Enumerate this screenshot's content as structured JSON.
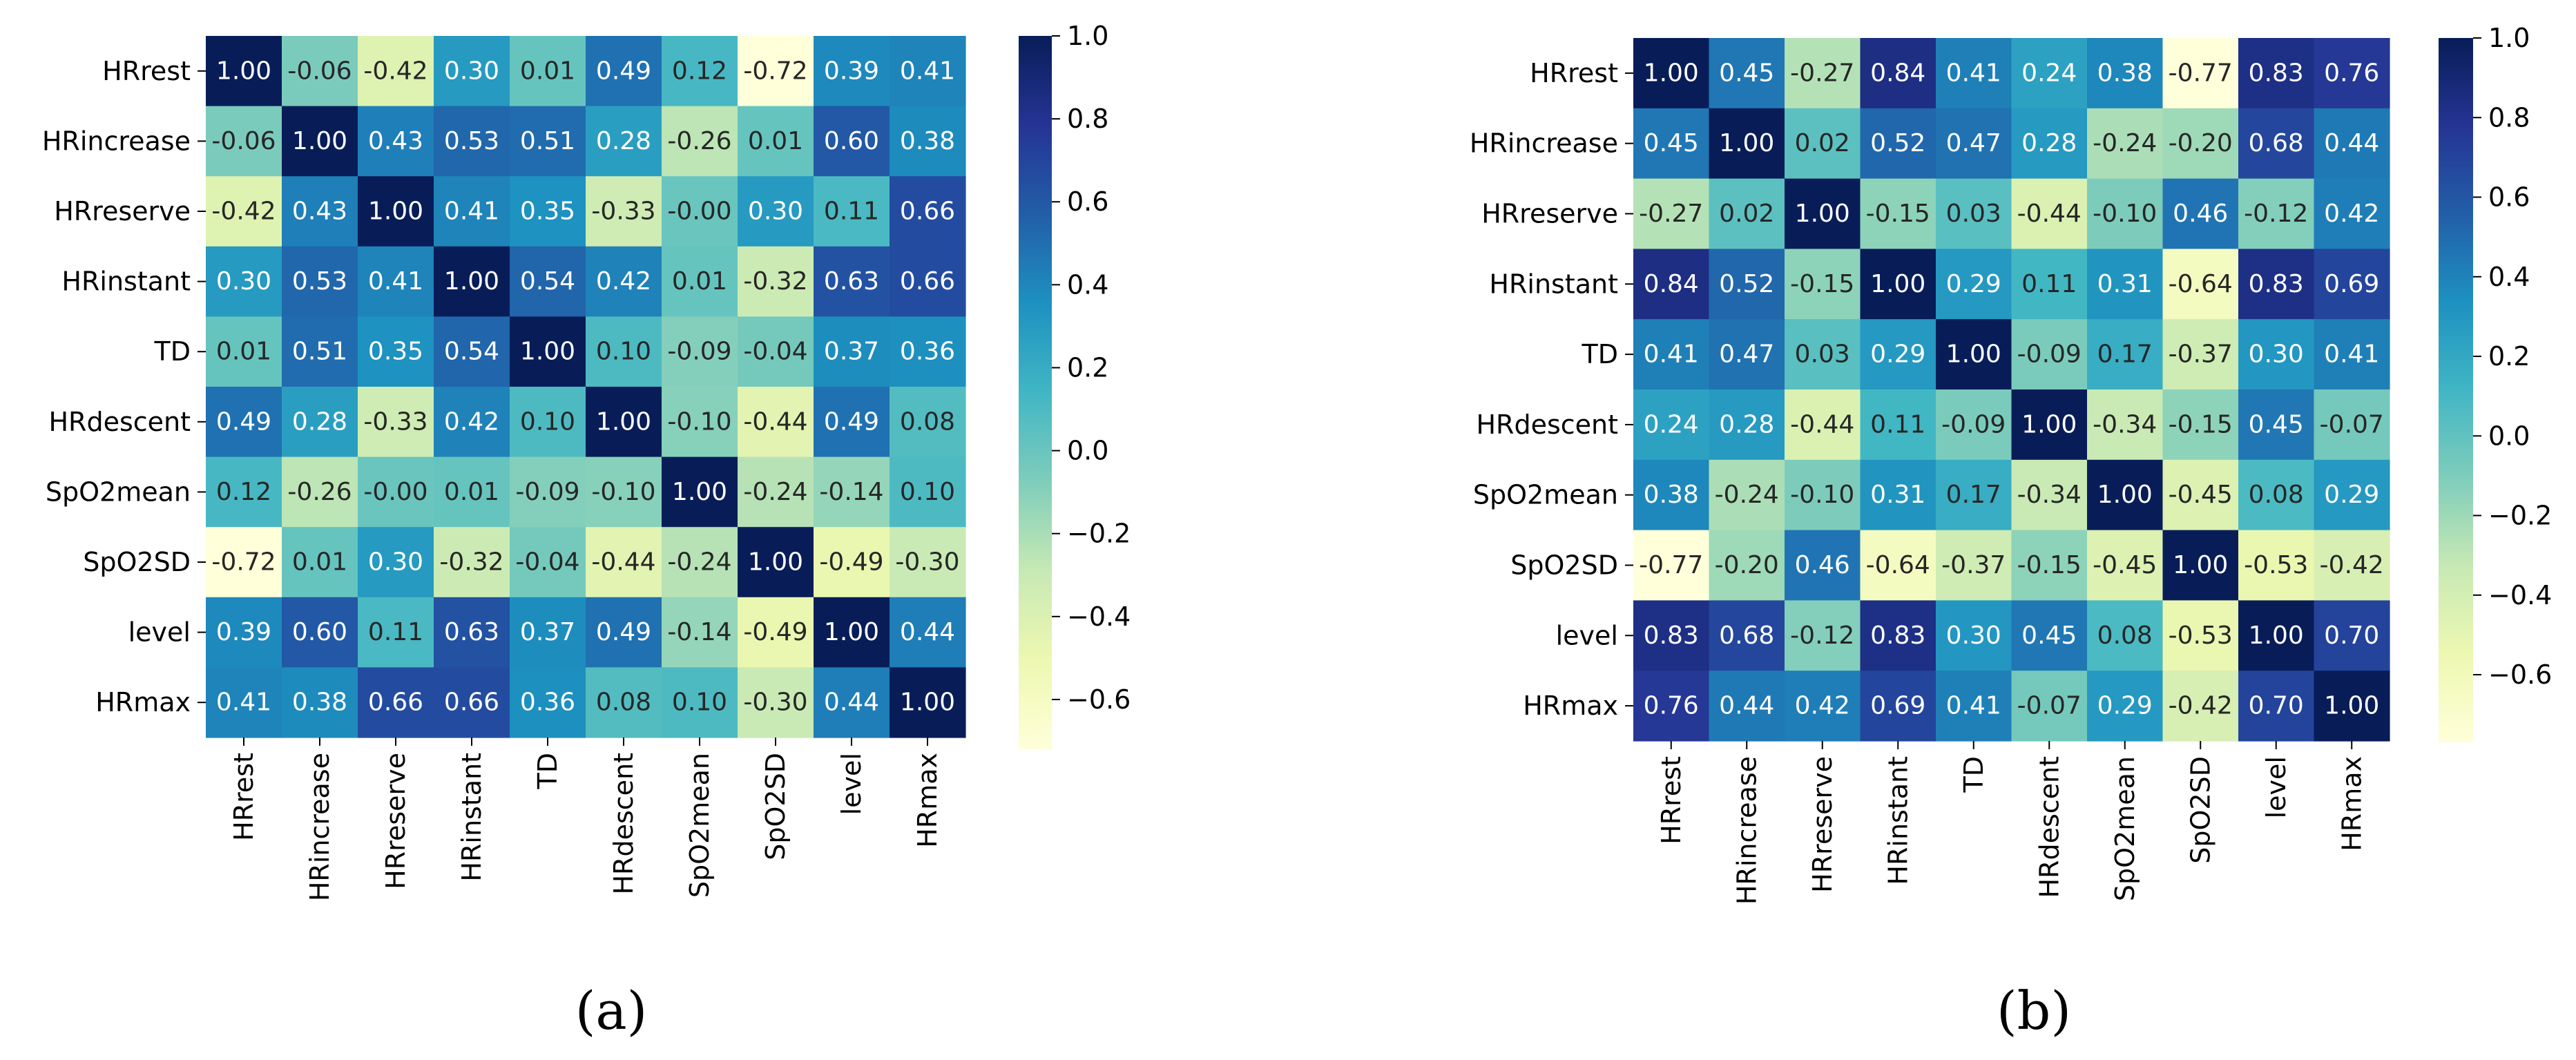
{
  "figure": {
    "panel_labels": [
      "(a)",
      "(b)"
    ]
  },
  "chart_data": [
    {
      "type": "heatmap",
      "panel": "(a)",
      "title": "",
      "rows": [
        "HRrest",
        "HRincrease",
        "HRreserve",
        "HRinstant",
        "TD",
        "HRdescent",
        "SpO2mean",
        "SpO2SD",
        "level",
        "HRmax"
      ],
      "columns": [
        "HRrest",
        "HRincrease",
        "HRreserve",
        "HRinstant",
        "TD",
        "HRdescent",
        "SpO2mean",
        "SpO2SD",
        "level",
        "HRmax"
      ],
      "values": [
        [
          1.0,
          -0.06,
          -0.42,
          0.3,
          0.01,
          0.49,
          0.12,
          -0.72,
          0.39,
          0.41
        ],
        [
          -0.06,
          1.0,
          0.43,
          0.53,
          0.51,
          0.28,
          -0.26,
          0.01,
          0.6,
          0.38
        ],
        [
          -0.42,
          0.43,
          1.0,
          0.41,
          0.35,
          -0.33,
          -0.0,
          0.3,
          0.11,
          0.66
        ],
        [
          0.3,
          0.53,
          0.41,
          1.0,
          0.54,
          0.42,
          0.01,
          -0.32,
          0.63,
          0.66
        ],
        [
          0.01,
          0.51,
          0.35,
          0.54,
          1.0,
          0.1,
          -0.09,
          -0.04,
          0.37,
          0.36
        ],
        [
          0.49,
          0.28,
          -0.33,
          0.42,
          0.1,
          1.0,
          -0.1,
          -0.44,
          0.49,
          0.08
        ],
        [
          0.12,
          -0.26,
          -0.0,
          0.01,
          -0.09,
          -0.1,
          1.0,
          -0.24,
          -0.14,
          0.1
        ],
        [
          -0.72,
          0.01,
          0.3,
          -0.32,
          -0.04,
          -0.44,
          -0.24,
          1.0,
          -0.49,
          -0.3
        ],
        [
          0.39,
          0.6,
          0.11,
          0.63,
          0.37,
          0.49,
          -0.14,
          -0.49,
          1.0,
          0.44
        ],
        [
          0.41,
          0.38,
          0.66,
          0.66,
          0.36,
          0.08,
          0.1,
          -0.3,
          0.44,
          1.0
        ]
      ],
      "value_labels": [
        [
          "1.00",
          "-0.06",
          "-0.42",
          "0.30",
          "0.01",
          "0.49",
          "0.12",
          "-0.72",
          "0.39",
          "0.41"
        ],
        [
          "-0.06",
          "1.00",
          "0.43",
          "0.53",
          "0.51",
          "0.28",
          "-0.26",
          "0.01",
          "0.60",
          "0.38"
        ],
        [
          "-0.42",
          "0.43",
          "1.00",
          "0.41",
          "0.35",
          "-0.33",
          "-0.00",
          "0.30",
          "0.11",
          "0.66"
        ],
        [
          "0.30",
          "0.53",
          "0.41",
          "1.00",
          "0.54",
          "0.42",
          "0.01",
          "-0.32",
          "0.63",
          "0.66"
        ],
        [
          "0.01",
          "0.51",
          "0.35",
          "0.54",
          "1.00",
          "0.10",
          "-0.09",
          "-0.04",
          "0.37",
          "0.36"
        ],
        [
          "0.49",
          "0.28",
          "-0.33",
          "0.42",
          "0.10",
          "1.00",
          "-0.10",
          "-0.44",
          "0.49",
          "0.08"
        ],
        [
          "0.12",
          "-0.26",
          "-0.00",
          "0.01",
          "-0.09",
          "-0.10",
          "1.00",
          "-0.24",
          "-0.14",
          "0.10"
        ],
        [
          "-0.72",
          "0.01",
          "0.30",
          "-0.32",
          "-0.04",
          "-0.44",
          "-0.24",
          "1.00",
          "-0.49",
          "-0.30"
        ],
        [
          "0.39",
          "0.60",
          "0.11",
          "0.63",
          "0.37",
          "0.49",
          "-0.14",
          "-0.49",
          "1.00",
          "0.44"
        ],
        [
          "0.41",
          "0.38",
          "0.66",
          "0.66",
          "0.36",
          "0.08",
          "0.10",
          "-0.30",
          "0.44",
          "1.00"
        ]
      ],
      "colorbar": {
        "range": [
          -0.72,
          1.0
        ],
        "ticks": [
          -0.6,
          -0.4,
          -0.2,
          0.0,
          0.2,
          0.4,
          0.6,
          0.8,
          1.0
        ],
        "tick_labels": [
          "−0.6",
          "−0.4",
          "−0.2",
          "0.0",
          "0.2",
          "0.4",
          "0.6",
          "0.8",
          "1.0"
        ]
      },
      "colormap": "YlGnBu"
    },
    {
      "type": "heatmap",
      "panel": "(b)",
      "title": "",
      "rows": [
        "HRrest",
        "HRincrease",
        "HRreserve",
        "HRinstant",
        "TD",
        "HRdescent",
        "SpO2mean",
        "SpO2SD",
        "level",
        "HRmax"
      ],
      "columns": [
        "HRrest",
        "HRincrease",
        "HRreserve",
        "HRinstant",
        "TD",
        "HRdescent",
        "SpO2mean",
        "SpO2SD",
        "level",
        "HRmax"
      ],
      "values": [
        [
          1.0,
          0.45,
          -0.27,
          0.84,
          0.41,
          0.24,
          0.38,
          -0.77,
          0.83,
          0.76
        ],
        [
          0.45,
          1.0,
          0.02,
          0.52,
          0.47,
          0.28,
          -0.24,
          -0.2,
          0.68,
          0.44
        ],
        [
          -0.27,
          0.02,
          1.0,
          -0.15,
          0.03,
          -0.44,
          -0.1,
          0.46,
          -0.12,
          0.42
        ],
        [
          0.84,
          0.52,
          -0.15,
          1.0,
          0.29,
          0.11,
          0.31,
          -0.64,
          0.83,
          0.69
        ],
        [
          0.41,
          0.47,
          0.03,
          0.29,
          1.0,
          -0.09,
          0.17,
          -0.37,
          0.3,
          0.41
        ],
        [
          0.24,
          0.28,
          -0.44,
          0.11,
          -0.09,
          1.0,
          -0.34,
          -0.15,
          0.45,
          -0.07
        ],
        [
          0.38,
          -0.24,
          -0.1,
          0.31,
          0.17,
          -0.34,
          1.0,
          -0.45,
          0.08,
          0.29
        ],
        [
          -0.77,
          -0.2,
          0.46,
          -0.64,
          -0.37,
          -0.15,
          -0.45,
          1.0,
          -0.53,
          -0.42
        ],
        [
          0.83,
          0.68,
          -0.12,
          0.83,
          0.3,
          0.45,
          0.08,
          -0.53,
          1.0,
          0.7
        ],
        [
          0.76,
          0.44,
          0.42,
          0.69,
          0.41,
          -0.07,
          0.29,
          -0.42,
          0.7,
          1.0
        ]
      ],
      "value_labels": [
        [
          "1.00",
          "0.45",
          "-0.27",
          "0.84",
          "0.41",
          "0.24",
          "0.38",
          "-0.77",
          "0.83",
          "0.76"
        ],
        [
          "0.45",
          "1.00",
          "0.02",
          "0.52",
          "0.47",
          "0.28",
          "-0.24",
          "-0.20",
          "0.68",
          "0.44"
        ],
        [
          "-0.27",
          "0.02",
          "1.00",
          "-0.15",
          "0.03",
          "-0.44",
          "-0.10",
          "0.46",
          "-0.12",
          "0.42"
        ],
        [
          "0.84",
          "0.52",
          "-0.15",
          "1.00",
          "0.29",
          "0.11",
          "0.31",
          "-0.64",
          "0.83",
          "0.69"
        ],
        [
          "0.41",
          "0.47",
          "0.03",
          "0.29",
          "1.00",
          "-0.09",
          "0.17",
          "-0.37",
          "0.30",
          "0.41"
        ],
        [
          "0.24",
          "0.28",
          "-0.44",
          "0.11",
          "-0.09",
          "1.00",
          "-0.34",
          "-0.15",
          "0.45",
          "-0.07"
        ],
        [
          "0.38",
          "-0.24",
          "-0.10",
          "0.31",
          "0.17",
          "-0.34",
          "1.00",
          "-0.45",
          "0.08",
          "0.29"
        ],
        [
          "-0.77",
          "-0.20",
          "0.46",
          "-0.64",
          "-0.37",
          "-0.15",
          "-0.45",
          "1.00",
          "-0.53",
          "-0.42"
        ],
        [
          "0.83",
          "0.68",
          "-0.12",
          "0.83",
          "0.30",
          "0.45",
          "0.08",
          "-0.53",
          "1.00",
          "0.70"
        ],
        [
          "0.76",
          "0.44",
          "0.42",
          "0.69",
          "0.41",
          "-0.07",
          "0.29",
          "-0.42",
          "0.70",
          "1.00"
        ]
      ],
      "colorbar": {
        "range": [
          -0.77,
          1.0
        ],
        "ticks": [
          -0.6,
          -0.4,
          -0.2,
          0.0,
          0.2,
          0.4,
          0.6,
          0.8,
          1.0
        ],
        "tick_labels": [
          "−0.6",
          "−0.4",
          "−0.2",
          "0.0",
          "0.2",
          "0.4",
          "0.6",
          "0.8",
          "1.0"
        ]
      },
      "colormap": "YlGnBu"
    }
  ]
}
